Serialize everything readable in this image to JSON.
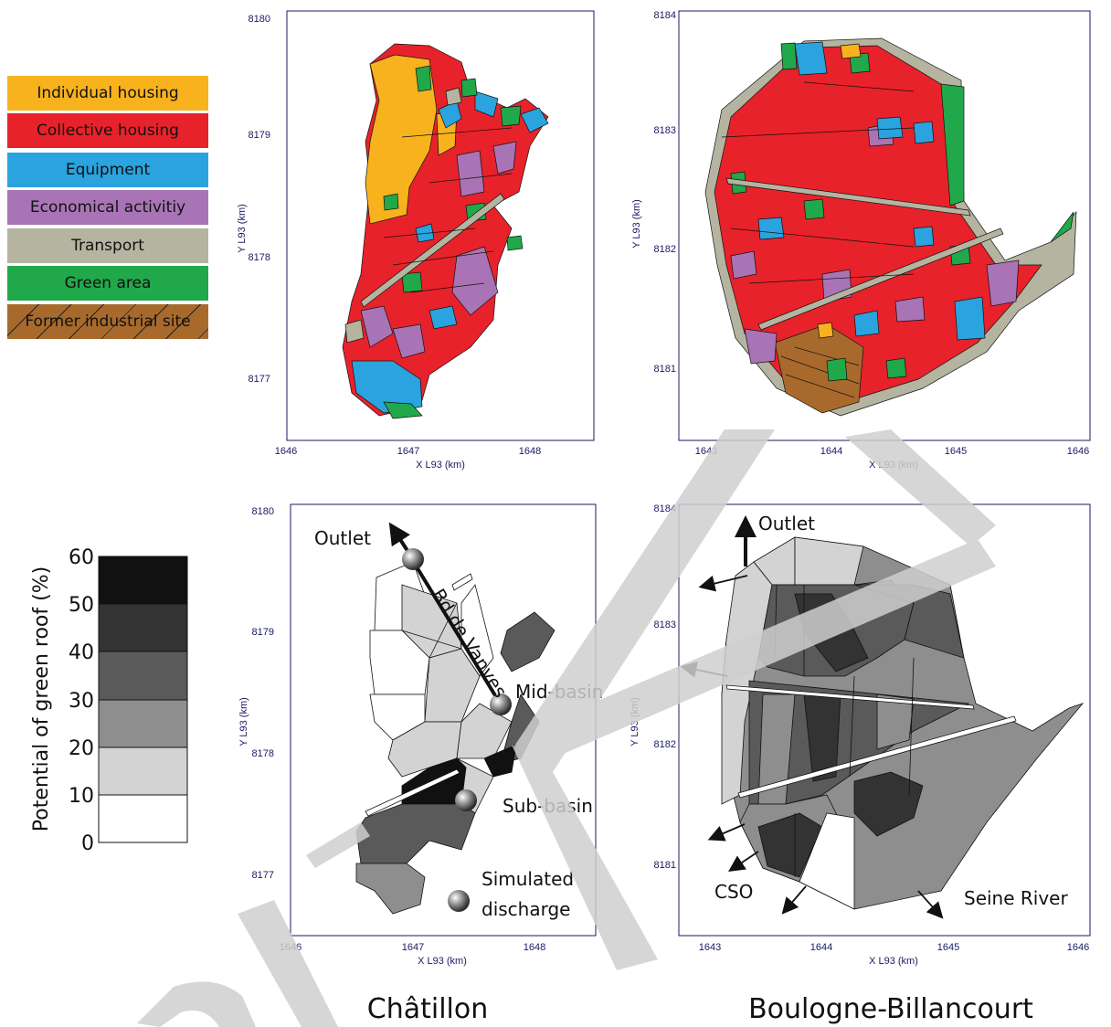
{
  "landuse_legend": [
    {
      "label": "Individual housing",
      "color": "#f7b21e"
    },
    {
      "label": "Collective housing",
      "color": "#e8222a"
    },
    {
      "label": "Equipment",
      "color": "#2aa3de"
    },
    {
      "label": "Economical activitiy",
      "color": "#a974b5"
    },
    {
      "label": "Transport",
      "color": "#b4b4a0"
    },
    {
      "label": "Green area",
      "color": "#21a84a"
    },
    {
      "label": "Former industrial site",
      "color": "#a86a2c",
      "hatched": true
    }
  ],
  "green_roof_scale": {
    "title": "Potential of green roof (%)",
    "ticks": [
      "0",
      "10",
      "20",
      "30",
      "40",
      "50",
      "60"
    ],
    "colors": [
      "#ffffff",
      "#d3d3d3",
      "#8e8e8e",
      "#5a5a5a",
      "#333333",
      "#111111"
    ]
  },
  "maps": {
    "chatillon": {
      "xlabel": "X L93 (km)",
      "ylabel": "Y L93 (km)",
      "x_ticks": [
        "1646",
        "1647",
        "1648"
      ],
      "y_ticks": [
        "8180",
        "8179",
        "8178",
        "8177"
      ]
    },
    "boulogne": {
      "xlabel": "X L93 (km)",
      "ylabel": "Y L93 (km)",
      "x_ticks": [
        "1643",
        "1644",
        "1645",
        "1646"
      ],
      "y_ticks": [
        "8184",
        "8183",
        "8182",
        "8181"
      ]
    }
  },
  "annotations": {
    "outlet_left": "Outlet",
    "bd_de_vanves": "Bd de Vanves",
    "mid_basin": "Mid-basin",
    "sub_basin": "Sub-basin",
    "simulated_line1": "Simulated",
    "simulated_line2": "discharge",
    "outlet_right": "Outlet",
    "cso": "CSO",
    "seine_river": "Seine River"
  },
  "city_labels": {
    "chatillon": "Châtillon",
    "boulogne": "Boulogne-Billancourt"
  },
  "colors": {
    "watermark": "#cfcfcf",
    "axis_text": "#1a1a66"
  }
}
